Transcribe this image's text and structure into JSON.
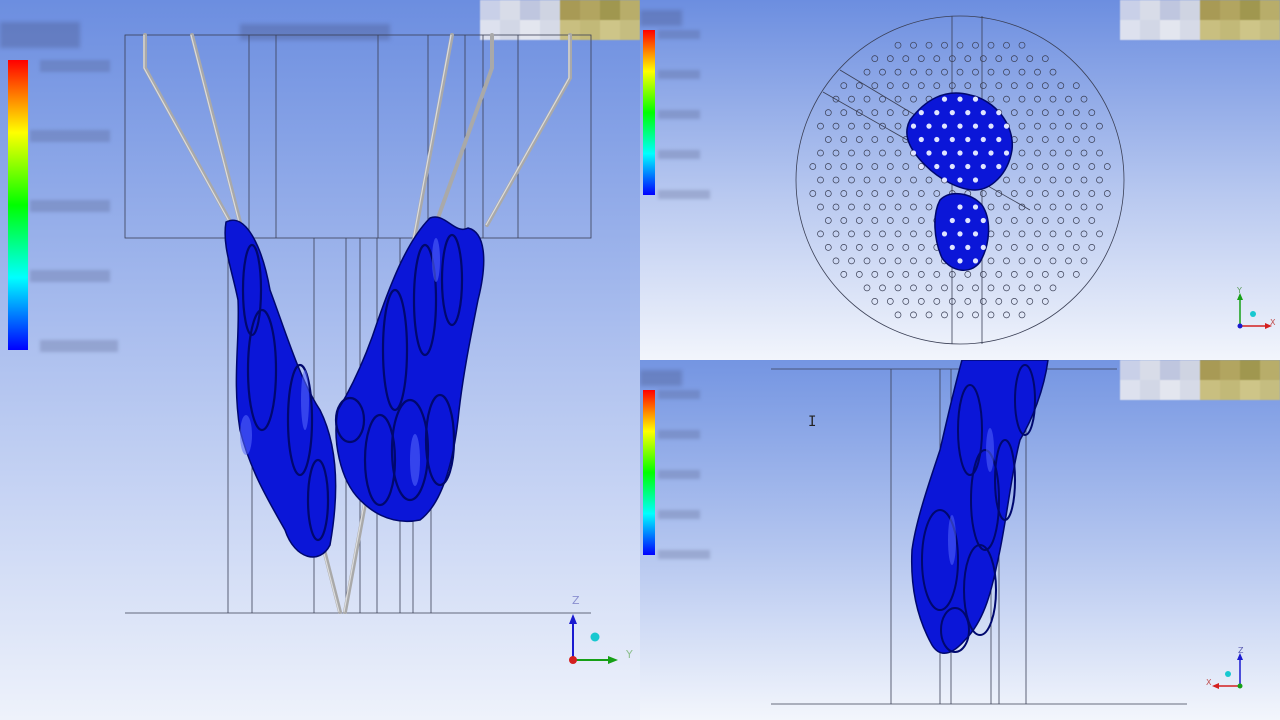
{
  "viewports": {
    "left": {
      "name": "side-view-yz",
      "axes": {
        "up": "Z",
        "right": "Y"
      }
    },
    "top_right": {
      "name": "top-view-xy",
      "axes": {
        "up": "Y",
        "right": "X"
      }
    },
    "bottom_right": {
      "name": "side-view-xz",
      "axes": {
        "up": "Z",
        "left": "X"
      }
    }
  },
  "colors": {
    "isosurface": "#0b16d8",
    "geometry_lines": "#3a3f55",
    "pipes": "#b9b9b9",
    "axis_x": "#d42020",
    "axis_y": "#16a016",
    "axis_z": "#1a1ad0",
    "axis_dot": "#18c8d0"
  },
  "legend_colormap": [
    "#ff0000",
    "#ff8000",
    "#ffff00",
    "#80ff00",
    "#00ff00",
    "#00ff80",
    "#00ffff",
    "#0080ff",
    "#0000ff"
  ]
}
